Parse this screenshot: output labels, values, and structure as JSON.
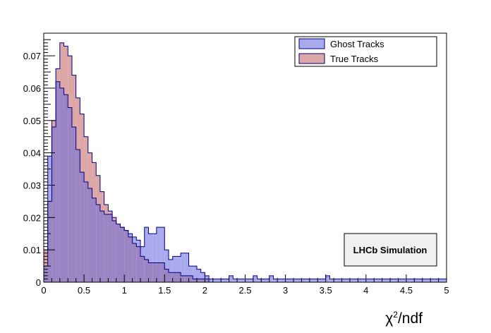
{
  "chart_data": {
    "type": "histogram",
    "x_axis": {
      "range": [
        0,
        5
      ],
      "ticks": [
        "0",
        "0.5",
        "1",
        "1.5",
        "2",
        "2.5",
        "3",
        "3.5",
        "4",
        "4.5",
        "5"
      ],
      "title_base": "χ",
      "title_sup": "2",
      "title_rest": "/ndf"
    },
    "y_axis": {
      "range": [
        0,
        0.077
      ],
      "ticks": [
        "0",
        "0.01",
        "0.02",
        "0.03",
        "0.04",
        "0.05",
        "0.06",
        "0.07"
      ]
    },
    "bin_width": 0.05,
    "series": [
      {
        "name": "Ghost Tracks",
        "fill": "#a9a9ee",
        "edge": "#000080",
        "values": [
          0.005,
          0.039,
          0.048,
          0.062,
          0.06,
          0.058,
          0.054,
          0.048,
          0.041,
          0.034,
          0.031,
          0.029,
          0.026,
          0.024,
          0.022,
          0.021,
          0.021,
          0.019,
          0.018,
          0.017,
          0.016,
          0.015,
          0.014,
          0.013,
          0.011,
          0.017,
          0.015,
          0.015,
          0.017,
          0.017,
          0.01,
          0.007,
          0.008,
          0.008,
          0.009,
          0.009,
          0.005,
          0.005,
          0.004,
          0.003,
          0.002,
          0.001,
          0.001,
          0.001,
          0.001,
          0.001,
          0.002,
          0.001,
          0.001,
          0.001,
          0.001,
          0.001,
          0.002,
          0.001,
          0.001,
          0.001,
          0.002,
          0.001,
          0.001,
          0.001,
          0.001,
          0.001,
          0.001,
          0.001,
          0.001,
          0.001,
          0.001,
          0.001,
          0.001,
          0.001,
          0.002,
          0.001,
          0.001,
          0.001,
          0.001,
          0.001,
          0.001,
          0.001,
          0.001,
          0.001,
          0.001,
          0.001,
          0.001,
          0.001,
          0.001,
          0.001,
          0.001,
          0.001,
          0.001,
          0.001,
          0.001,
          0.001,
          0.001,
          0.001,
          0.001,
          0.001,
          0.001,
          0.001,
          0.001,
          0.001
        ]
      },
      {
        "name": "True Tracks",
        "fill": "#dda7a7",
        "edge": "#000080",
        "values": [
          0.01,
          0.025,
          0.05,
          0.066,
          0.074,
          0.073,
          0.07,
          0.064,
          0.057,
          0.052,
          0.045,
          0.04,
          0.037,
          0.033,
          0.028,
          0.024,
          0.022,
          0.02,
          0.018,
          0.017,
          0.016,
          0.014,
          0.012,
          0.011,
          0.008,
          0.007,
          0.006,
          0.006,
          0.006,
          0.006,
          0.004,
          0.003,
          0.003,
          0.003,
          0.002,
          0.002,
          0.002,
          0.001,
          0.001,
          0.001,
          0.001,
          0,
          0,
          0,
          0,
          0,
          0,
          0,
          0,
          0,
          0,
          0,
          0,
          0,
          0,
          0,
          0,
          0,
          0,
          0,
          0,
          0,
          0,
          0,
          0,
          0,
          0,
          0,
          0,
          0,
          0,
          0,
          0,
          0,
          0,
          0,
          0,
          0,
          0,
          0,
          0,
          0,
          0,
          0,
          0,
          0,
          0,
          0,
          0,
          0,
          0,
          0,
          0,
          0,
          0,
          0,
          0,
          0,
          0,
          0
        ]
      }
    ],
    "overlap_fill": "#9b84c3",
    "legend_position": "top-right",
    "annotation": "LHCb Simulation",
    "grid": false
  }
}
